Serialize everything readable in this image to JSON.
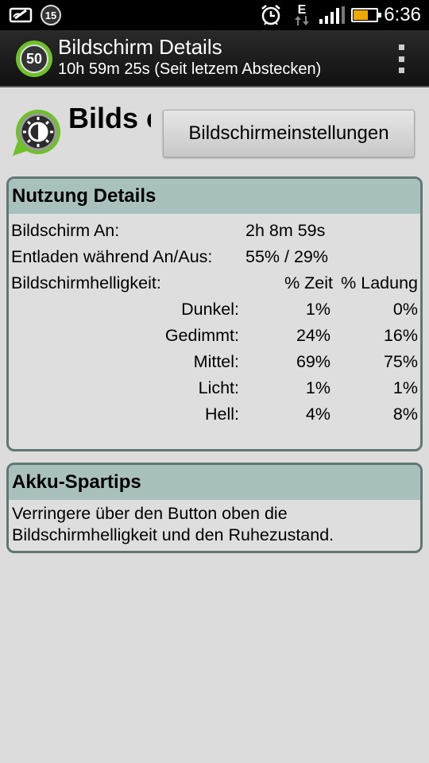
{
  "status_bar": {
    "time": "6:36",
    "network_type": "E",
    "notification_count": "15",
    "icons": [
      "missed-call-icon",
      "notification-badge-icon",
      "alarm-clock-icon",
      "network-e-icon",
      "signal-bars-icon",
      "battery-icon"
    ],
    "battery_color": "#f0a800"
  },
  "action_bar": {
    "app_icon_value": "50",
    "title": "Bildschirm Details",
    "subtitle": "10h 59m 25s (Seit letzem Abstecken)",
    "accent": "#6fbf2a"
  },
  "header": {
    "title": "Bilds chir…",
    "settings_button_label": "Bildschirmeinstellungen"
  },
  "usage_panel": {
    "title": "Nutzung Details",
    "screen_on_label": "Bildschirm An:",
    "screen_on_value": "2h 8m 59s",
    "discharge_label": "Entladen während An/Aus:",
    "discharge_value": "55% / 29%",
    "brightness_label": "Bildschirmhelligkeit:",
    "col_time": "% Zeit",
    "col_charge": "% Ladung",
    "levels": [
      {
        "name": "Dunkel:",
        "time": "1%",
        "charge": "0%"
      },
      {
        "name": "Gedimmt:",
        "time": "24%",
        "charge": "16%"
      },
      {
        "name": "Mittel:",
        "time": "69%",
        "charge": "75%"
      },
      {
        "name": "Licht:",
        "time": "1%",
        "charge": "1%"
      },
      {
        "name": "Hell:",
        "time": "4%",
        "charge": "8%"
      }
    ]
  },
  "tips_panel": {
    "title": "Akku-Spartips",
    "text": "Verringere über den Button oben die Bildschirmhelligkeit und den Ruhezustand."
  }
}
